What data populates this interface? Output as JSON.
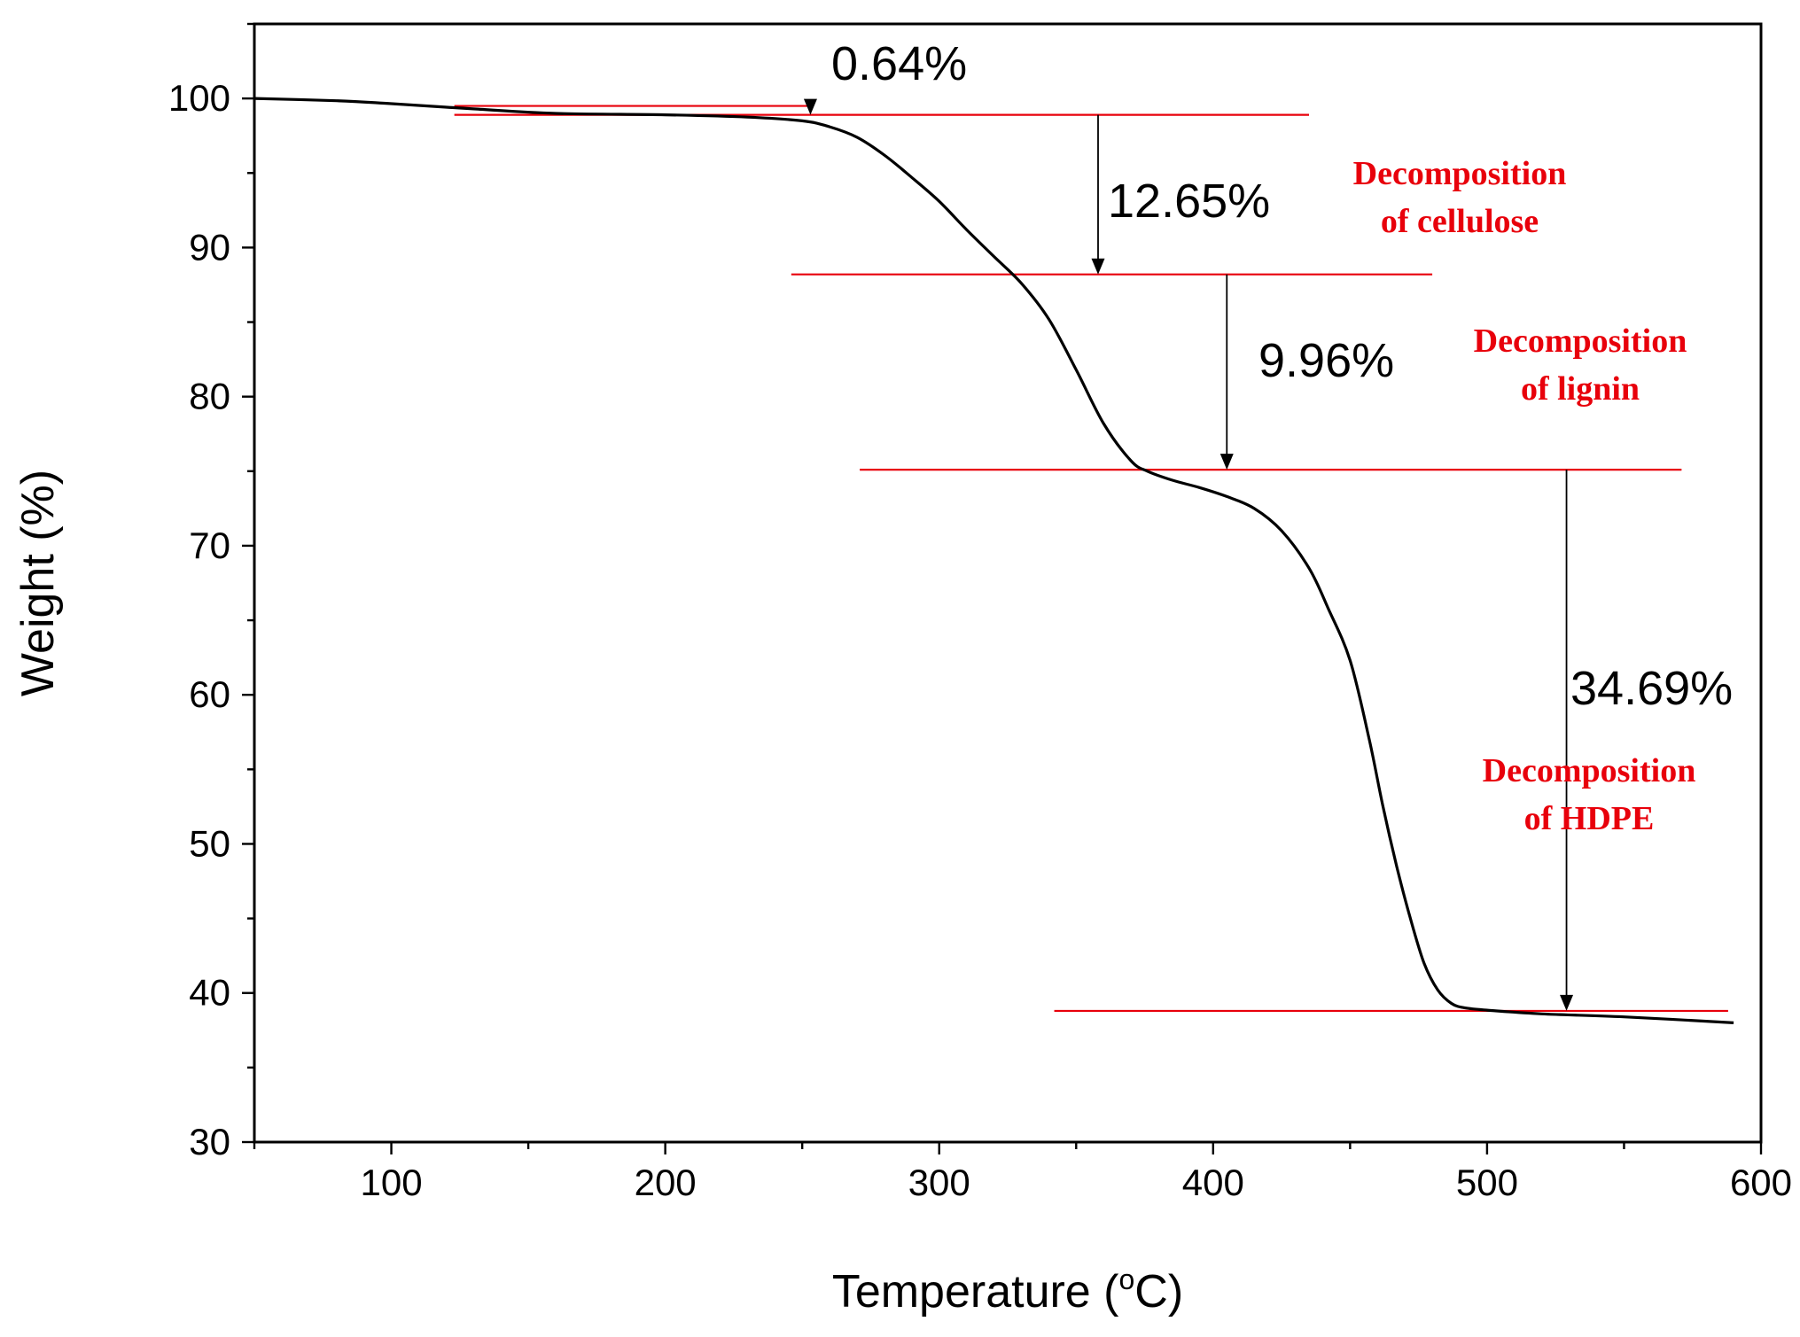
{
  "chart_data": {
    "type": "line",
    "title": "",
    "xlabel": "Temperature (°C)",
    "xlabel_parts": {
      "pre": "Temperature (",
      "sup": "o",
      "post": "C)"
    },
    "ylabel": "Weight (%)",
    "xlim": [
      50,
      600
    ],
    "ylim": [
      30,
      105
    ],
    "x_ticks": [
      100,
      200,
      300,
      400,
      500,
      600
    ],
    "x_minor_step": 50,
    "y_ticks": [
      30,
      40,
      50,
      60,
      70,
      80,
      90,
      100
    ],
    "y_minor_step": 5,
    "grid": false,
    "series": [
      {
        "name": "TGA weight",
        "color": "#000000",
        "x": [
          50,
          80,
          100,
          130,
          160,
          200,
          230,
          250,
          260,
          270,
          280,
          290,
          300,
          310,
          320,
          330,
          340,
          350,
          360,
          370,
          376,
          385,
          395,
          405,
          415,
          425,
          435,
          442,
          450,
          457,
          462,
          467,
          472,
          477,
          482,
          487,
          492,
          500,
          520,
          550,
          590
        ],
        "values": [
          100.0,
          99.85,
          99.65,
          99.3,
          99.0,
          98.9,
          98.75,
          98.5,
          98.1,
          97.4,
          96.2,
          94.7,
          93.1,
          91.2,
          89.4,
          87.6,
          85.2,
          81.8,
          78.2,
          75.7,
          75.0,
          74.4,
          73.9,
          73.3,
          72.5,
          71.0,
          68.5,
          65.8,
          62.3,
          57.0,
          52.5,
          48.5,
          45.0,
          42.0,
          40.2,
          39.3,
          39.0,
          38.85,
          38.6,
          38.4,
          38.0
        ]
      }
    ],
    "reference_lines": [
      {
        "y": 99.5,
        "x_start": 123,
        "x_end": 252,
        "color": "#e8000b"
      },
      {
        "y": 98.9,
        "x_start": 123,
        "x_end": 435,
        "color": "#e8000b"
      },
      {
        "y": 88.2,
        "x_start": 246,
        "x_end": 480,
        "color": "#e8000b"
      },
      {
        "y": 75.1,
        "x_start": 271,
        "x_end": 571,
        "color": "#e8000b"
      },
      {
        "y": 38.8,
        "x_start": 342,
        "x_end": 588,
        "color": "#e8000b"
      }
    ],
    "drop_arrows": [
      {
        "x": 253,
        "y_from": 99.5,
        "y_to": 98.9,
        "label": "0.64%"
      },
      {
        "x": 358,
        "y_from": 98.9,
        "y_to": 88.2,
        "label": "12.65%"
      },
      {
        "x": 405,
        "y_from": 88.2,
        "y_to": 75.1,
        "label": "9.96%"
      },
      {
        "x": 529,
        "y_from": 75.1,
        "y_to": 38.8,
        "label": "34.69%"
      }
    ],
    "stage_annotations": [
      {
        "line1": "Decomposition",
        "line2": "of  cellulose"
      },
      {
        "line1": "Decomposition",
        "line2": "of  lignin"
      },
      {
        "line1": "Decomposition",
        "line2": "of  HDPE"
      }
    ],
    "colors": {
      "curve": "#000000",
      "reference": "#e8000b",
      "annotation": "#e8000b"
    }
  }
}
